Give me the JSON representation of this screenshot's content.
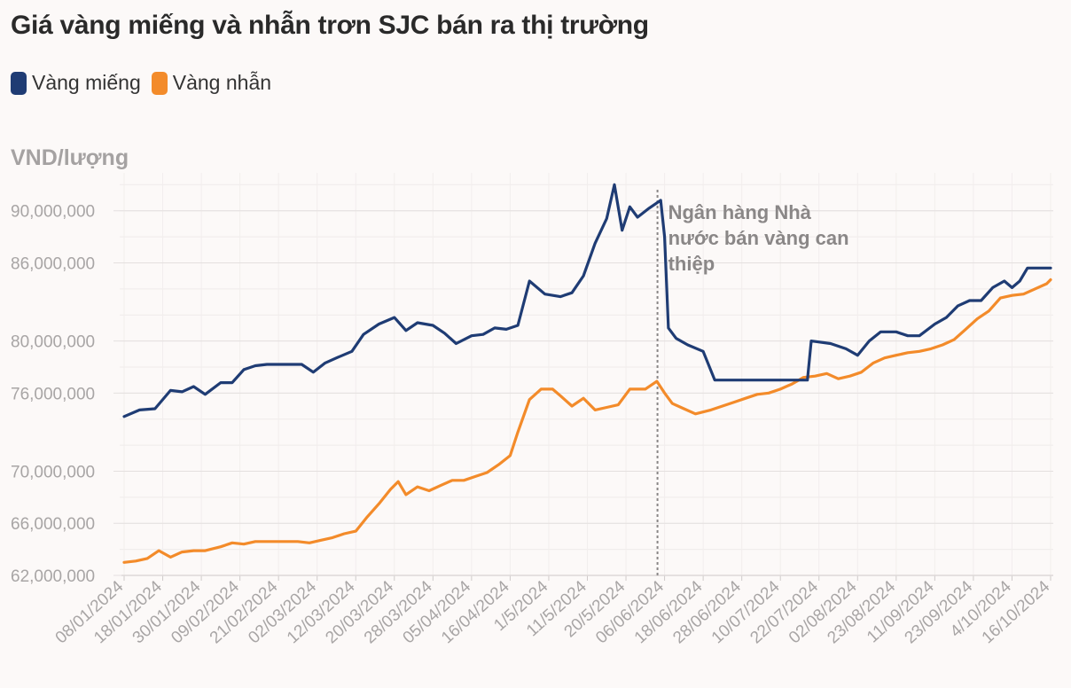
{
  "chart_data": {
    "type": "line",
    "title": "Giá vàng miếng và nhẫn trơn SJC bán ra thị trường",
    "ylabel": "VND/lượng",
    "ylim": [
      62000000,
      91000000
    ],
    "yticks": [
      {
        "value": 62000000,
        "label": "62,000,000"
      },
      {
        "value": 66000000,
        "label": "66,000,000"
      },
      {
        "value": 70000000,
        "label": "70,000,000"
      },
      {
        "value": 76000000,
        "label": "76,000,000"
      },
      {
        "value": 80000000,
        "label": "80,000,000"
      },
      {
        "value": 86000000,
        "label": "86,000,000"
      },
      {
        "value": 90000000,
        "label": "90,000,000"
      }
    ],
    "xtick_labels": [
      "08/01/2024",
      "18/01/2024",
      "30/01/2024",
      "09/02/2024",
      "21/02/2024",
      "02/03/2024",
      "12/03/2024",
      "20/03/2024",
      "28/03/2024",
      "05/04/2024",
      "16/04/2024",
      "1/5/2024",
      "11/5/2024",
      "20/5/2024",
      "06/06/2024",
      "18/06/2024",
      "28/06/2024",
      "10/07/2024",
      "22/07/2024",
      "02/08/2024",
      "23/08/2024",
      "11/09/2024",
      "23/09/2024",
      "4/10/2024",
      "16/10/2024"
    ],
    "annotation": {
      "text_lines": [
        "Ngân hàng Nhà",
        "nước bán vàng can",
        "thiệp"
      ],
      "x_index": 14
    },
    "series": [
      {
        "name": "Vàng miếng",
        "color": "#1f3c74",
        "values": [
          [
            0,
            74.2
          ],
          [
            0.4,
            74.7
          ],
          [
            0.8,
            74.8
          ],
          [
            1.2,
            76.2
          ],
          [
            1.5,
            76.1
          ],
          [
            1.8,
            76.5
          ],
          [
            2.1,
            75.9
          ],
          [
            2.5,
            76.8
          ],
          [
            2.8,
            76.8
          ],
          [
            3.1,
            77.8
          ],
          [
            3.4,
            78.1
          ],
          [
            3.7,
            78.2
          ],
          [
            4.2,
            78.2
          ],
          [
            4.6,
            78.2
          ],
          [
            4.9,
            77.6
          ],
          [
            5.2,
            78.3
          ],
          [
            5.5,
            78.7
          ],
          [
            5.9,
            79.2
          ],
          [
            6.2,
            80.5
          ],
          [
            6.6,
            81.3
          ],
          [
            7.0,
            81.8
          ],
          [
            7.3,
            80.8
          ],
          [
            7.6,
            81.4
          ],
          [
            8.0,
            81.2
          ],
          [
            8.3,
            80.6
          ],
          [
            8.6,
            79.8
          ],
          [
            9.0,
            80.4
          ],
          [
            9.3,
            80.5
          ],
          [
            9.6,
            81.0
          ],
          [
            9.9,
            80.9
          ],
          [
            10.2,
            81.2
          ],
          [
            10.5,
            84.6
          ],
          [
            10.9,
            83.6
          ],
          [
            11.3,
            83.4
          ],
          [
            11.6,
            83.7
          ],
          [
            11.9,
            85.0
          ],
          [
            12.2,
            87.5
          ],
          [
            12.5,
            89.4
          ],
          [
            12.7,
            92.0
          ],
          [
            12.9,
            88.5
          ],
          [
            13.1,
            90.3
          ],
          [
            13.3,
            89.5
          ],
          [
            13.6,
            90.2
          ],
          [
            13.9,
            90.8
          ],
          [
            14.0,
            88.0
          ],
          [
            14.1,
            81.0
          ],
          [
            14.3,
            80.2
          ],
          [
            14.6,
            79.7
          ],
          [
            15.0,
            79.2
          ],
          [
            15.3,
            77.0
          ],
          [
            16.0,
            77.0
          ],
          [
            17.0,
            77.0
          ],
          [
            17.7,
            77.0
          ],
          [
            17.8,
            80.0
          ],
          [
            18.3,
            79.8
          ],
          [
            18.7,
            79.4
          ],
          [
            19.0,
            78.9
          ],
          [
            19.3,
            80.0
          ],
          [
            19.6,
            80.7
          ],
          [
            20.0,
            80.7
          ],
          [
            20.3,
            80.4
          ],
          [
            20.6,
            80.4
          ],
          [
            21.0,
            81.3
          ],
          [
            21.3,
            81.8
          ],
          [
            21.6,
            82.7
          ],
          [
            21.9,
            83.1
          ],
          [
            22.2,
            83.1
          ],
          [
            22.5,
            84.1
          ],
          [
            22.8,
            84.6
          ],
          [
            23.0,
            84.1
          ],
          [
            23.2,
            84.6
          ],
          [
            23.4,
            85.6
          ],
          [
            23.6,
            85.6
          ],
          [
            24.0,
            85.6
          ]
        ]
      },
      {
        "name": "Vàng nhẫn",
        "color": "#f38b2a",
        "values": [
          [
            0,
            63.0
          ],
          [
            0.3,
            63.1
          ],
          [
            0.6,
            63.3
          ],
          [
            0.9,
            63.9
          ],
          [
            1.2,
            63.4
          ],
          [
            1.5,
            63.8
          ],
          [
            1.8,
            63.9
          ],
          [
            2.1,
            63.9
          ],
          [
            2.5,
            64.2
          ],
          [
            2.8,
            64.5
          ],
          [
            3.1,
            64.4
          ],
          [
            3.4,
            64.6
          ],
          [
            3.8,
            64.6
          ],
          [
            4.2,
            64.6
          ],
          [
            4.5,
            64.6
          ],
          [
            4.8,
            64.5
          ],
          [
            5.1,
            64.7
          ],
          [
            5.4,
            64.9
          ],
          [
            5.7,
            65.2
          ],
          [
            6.0,
            65.4
          ],
          [
            6.3,
            66.5
          ],
          [
            6.6,
            67.5
          ],
          [
            6.9,
            68.6
          ],
          [
            7.1,
            69.2
          ],
          [
            7.3,
            68.2
          ],
          [
            7.6,
            68.8
          ],
          [
            7.9,
            68.5
          ],
          [
            8.2,
            68.9
          ],
          [
            8.5,
            69.3
          ],
          [
            8.8,
            69.3
          ],
          [
            9.1,
            69.6
          ],
          [
            9.4,
            69.9
          ],
          [
            9.7,
            70.5
          ],
          [
            10.0,
            71.2
          ],
          [
            10.2,
            73.0
          ],
          [
            10.5,
            75.5
          ],
          [
            10.8,
            76.3
          ],
          [
            11.1,
            76.3
          ],
          [
            11.3,
            75.8
          ],
          [
            11.6,
            75.0
          ],
          [
            11.9,
            75.6
          ],
          [
            12.2,
            74.7
          ],
          [
            12.5,
            74.9
          ],
          [
            12.8,
            75.1
          ],
          [
            13.1,
            76.3
          ],
          [
            13.5,
            76.3
          ],
          [
            13.8,
            76.9
          ],
          [
            14.0,
            76.0
          ],
          [
            14.2,
            75.2
          ],
          [
            14.5,
            74.8
          ],
          [
            14.8,
            74.4
          ],
          [
            15.2,
            74.7
          ],
          [
            15.5,
            75.0
          ],
          [
            15.8,
            75.3
          ],
          [
            16.1,
            75.6
          ],
          [
            16.4,
            75.9
          ],
          [
            16.7,
            76.0
          ],
          [
            17.0,
            76.3
          ],
          [
            17.3,
            76.7
          ],
          [
            17.6,
            77.2
          ],
          [
            17.9,
            77.3
          ],
          [
            18.2,
            77.5
          ],
          [
            18.5,
            77.1
          ],
          [
            18.8,
            77.3
          ],
          [
            19.1,
            77.6
          ],
          [
            19.4,
            78.3
          ],
          [
            19.7,
            78.7
          ],
          [
            20.0,
            78.9
          ],
          [
            20.3,
            79.1
          ],
          [
            20.6,
            79.2
          ],
          [
            20.9,
            79.4
          ],
          [
            21.2,
            79.7
          ],
          [
            21.5,
            80.1
          ],
          [
            21.8,
            80.9
          ],
          [
            22.1,
            81.7
          ],
          [
            22.4,
            82.3
          ],
          [
            22.7,
            83.3
          ],
          [
            23.0,
            83.5
          ],
          [
            23.3,
            83.6
          ],
          [
            23.6,
            84.0
          ],
          [
            23.9,
            84.4
          ],
          [
            24.0,
            84.7
          ]
        ]
      }
    ]
  }
}
